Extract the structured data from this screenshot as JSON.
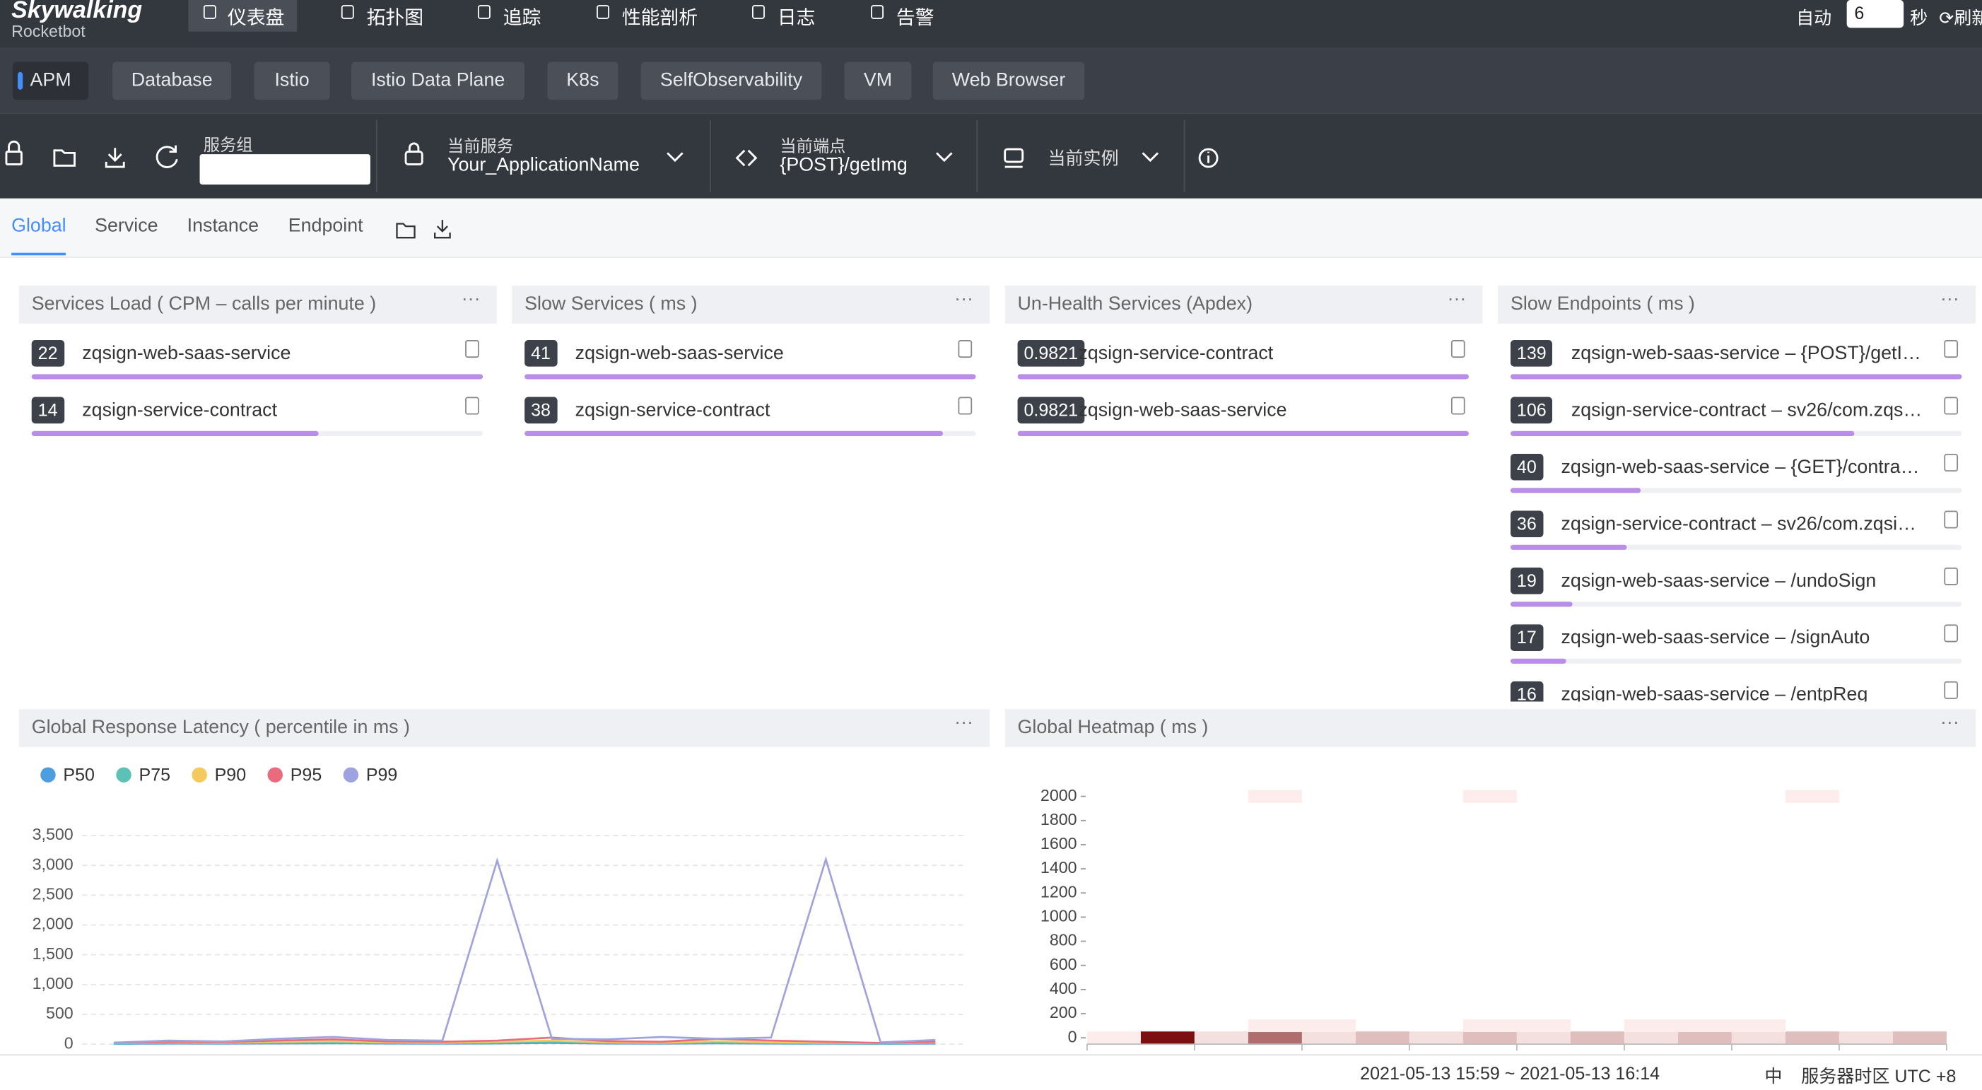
{
  "header": {
    "logo": "Skywalking",
    "sublogo": "Rocketbot",
    "nav": [
      "仪表盘",
      "拓扑图",
      "追踪",
      "性能剖析",
      "日志",
      "告警"
    ],
    "auto_label": "自动",
    "interval": "6",
    "interval_unit": "秒",
    "refresh": "刷新"
  },
  "layers": [
    "APM",
    "Database",
    "Istio",
    "Istio Data Plane",
    "K8s",
    "SelfObservability",
    "VM",
    "Web Browser"
  ],
  "toolbar": {
    "service_group_label": "服务组",
    "current_service_label": "当前服务",
    "current_service": "Your_ApplicationName",
    "current_endpoint_label": "当前端点",
    "current_endpoint": "{POST}/getImg",
    "current_instance_label": "当前实例"
  },
  "tabs": [
    "Global",
    "Service",
    "Instance",
    "Endpoint"
  ],
  "panels": [
    {
      "title": "Services Load ( CPM – calls per minute )",
      "items": [
        {
          "value": 22,
          "label": "zqsign-web-saas-service"
        },
        {
          "value": 14,
          "label": "zqsign-service-contract"
        }
      ]
    },
    {
      "title": "Slow Services ( ms )",
      "items": [
        {
          "value": 41,
          "label": "zqsign-web-saas-service"
        },
        {
          "value": 38,
          "label": "zqsign-service-contract"
        }
      ]
    },
    {
      "title": "Un-Health Services (Apdex)",
      "items": [
        {
          "value": 0.9821,
          "label": "zqsign-service-contract"
        },
        {
          "value": 0.9821,
          "label": "zqsign-web-saas-service"
        }
      ]
    },
    {
      "title": "Slow Endpoints ( ms )",
      "items": [
        {
          "value": 139,
          "label": "zqsign-web-saas-service – {POST}/getI…"
        },
        {
          "value": 106,
          "label": "zqsign-service-contract – sv26/com.zqs…"
        },
        {
          "value": 40,
          "label": "zqsign-web-saas-service – {GET}/contra…"
        },
        {
          "value": 36,
          "label": "zqsign-service-contract – sv26/com.zqsi…"
        },
        {
          "value": 19,
          "label": "zqsign-web-saas-service – /undoSign"
        },
        {
          "value": 17,
          "label": "zqsign-web-saas-service – /signAuto"
        },
        {
          "value": 16,
          "label": "zqsign-web-saas-service – /entpReg"
        }
      ]
    }
  ],
  "chart_data": [
    {
      "type": "line",
      "title": "Global Response Latency ( percentile in ms )",
      "grid": true,
      "ylim": [
        0,
        3500
      ],
      "yticks": [
        0,
        500,
        {
          "value": 1000,
          "label": "1,000"
        },
        {
          "value": 1500,
          "label": "1,500"
        },
        {
          "value": 2000,
          "label": "2,000"
        },
        {
          "value": 2500,
          "label": "2,500"
        },
        {
          "value": 3000,
          "label": "3,000"
        },
        {
          "value": 3500,
          "label": "3,500"
        }
      ],
      "series": [
        {
          "name": "P50",
          "color": "#4e9de0",
          "values": [
            5,
            10,
            8,
            12,
            15,
            10,
            8,
            12,
            20,
            10,
            8,
            15,
            10,
            8,
            5,
            10
          ]
        },
        {
          "name": "P75",
          "color": "#5cc2b5",
          "values": [
            10,
            20,
            15,
            25,
            30,
            20,
            15,
            25,
            40,
            20,
            15,
            30,
            20,
            15,
            10,
            20
          ]
        },
        {
          "name": "P90",
          "color": "#f4c95d",
          "values": [
            15,
            30,
            25,
            40,
            50,
            30,
            25,
            40,
            60,
            30,
            25,
            50,
            30,
            25,
            15,
            30
          ]
        },
        {
          "name": "P95",
          "color": "#ea6b7d",
          "values": [
            20,
            40,
            35,
            60,
            80,
            45,
            40,
            60,
            110,
            50,
            40,
            90,
            60,
            40,
            20,
            40
          ]
        },
        {
          "name": "P99",
          "color": "#9ea3e0",
          "values": [
            25,
            60,
            45,
            90,
            120,
            70,
            60,
            3080,
            90,
            80,
            120,
            90,
            110,
            3100,
            30,
            70
          ]
        }
      ]
    },
    {
      "type": "heatmap",
      "title": "Global Heatmap ( ms )",
      "color": "#7a1010",
      "xlim": [
        0,
        16
      ],
      "ylim": [
        0,
        2000
      ],
      "yticks": [
        0,
        200,
        400,
        600,
        800,
        1000,
        1200,
        1400,
        1600,
        1800,
        2000
      ],
      "values": [
        [
          0,
          0,
          1
        ],
        [
          1,
          0,
          20
        ],
        [
          2,
          0,
          2
        ],
        [
          3,
          0,
          12
        ],
        [
          4,
          0,
          2
        ],
        [
          5,
          0,
          5
        ],
        [
          6,
          0,
          2
        ],
        [
          7,
          0,
          5
        ],
        [
          8,
          0,
          2
        ],
        [
          9,
          0,
          5
        ],
        [
          10,
          0,
          2
        ],
        [
          11,
          0,
          5
        ],
        [
          12,
          0,
          2
        ],
        [
          13,
          0,
          5
        ],
        [
          14,
          0,
          2
        ],
        [
          15,
          0,
          5
        ],
        [
          3,
          100,
          1
        ],
        [
          4,
          100,
          1
        ],
        [
          7,
          100,
          1
        ],
        [
          8,
          100,
          1
        ],
        [
          10,
          100,
          1
        ],
        [
          11,
          100,
          1
        ],
        [
          12,
          100,
          1
        ],
        [
          3,
          2000,
          1
        ],
        [
          7,
          2000,
          1
        ],
        [
          13,
          2000,
          1
        ]
      ]
    }
  ],
  "footer": {
    "time_range": "2021-05-13 15:59 ~ 2021-05-13 16:14",
    "language": "中",
    "timezone": "服务器时区 UTC +8"
  }
}
